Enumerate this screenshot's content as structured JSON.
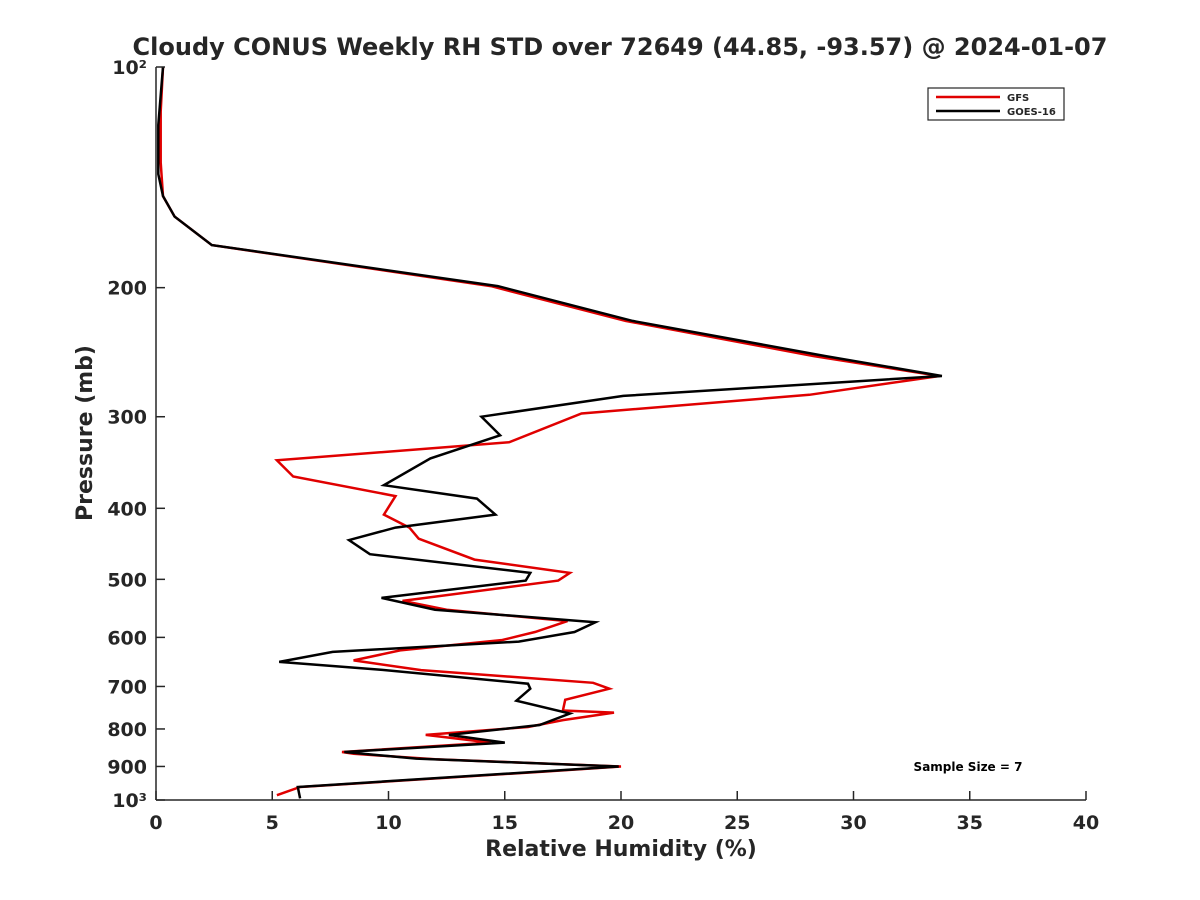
{
  "chart_data": {
    "type": "line",
    "title": "Cloudy CONUS Weekly RH STD over 72649 (44.85, -93.57) @ 2024-01-07",
    "xlabel": "Relative Humidity (%)",
    "ylabel": "Pressure (mb)",
    "xlim": [
      0,
      40
    ],
    "ylim": [
      100,
      1000
    ],
    "y_scale": "log",
    "y_reversed": true,
    "grid": false,
    "legend_position": "top-right",
    "x_ticks": [
      0,
      5,
      10,
      15,
      20,
      25,
      30,
      35,
      40
    ],
    "x_tick_labels": [
      "0",
      "5",
      "10",
      "15",
      "20",
      "25",
      "30",
      "35",
      "40"
    ],
    "y_ticks": [
      100,
      200,
      300,
      400,
      500,
      600,
      700,
      800,
      900,
      1000
    ],
    "y_tick_labels": [
      "10²",
      "200",
      "300",
      "400",
      "500",
      "600",
      "700",
      "800",
      "900",
      "10³"
    ],
    "annotation": "Sample Size = 7",
    "series": [
      {
        "name": "GFS",
        "color": "#e00000",
        "points": [
          [
            0.3,
            100
          ],
          [
            0.2,
            115
          ],
          [
            0.2,
            135
          ],
          [
            0.3,
            150
          ],
          [
            0.8,
            160
          ],
          [
            2.4,
            175
          ],
          [
            14.4,
            199
          ],
          [
            20.2,
            222
          ],
          [
            28.3,
            248
          ],
          [
            33.7,
            264
          ],
          [
            28.1,
            280
          ],
          [
            18.3,
            297
          ],
          [
            15.2,
            325
          ],
          [
            5.2,
            344
          ],
          [
            5.9,
            362
          ],
          [
            10.3,
            385
          ],
          [
            9.8,
            408
          ],
          [
            10.9,
            425
          ],
          [
            11.3,
            440
          ],
          [
            13.7,
            470
          ],
          [
            17.8,
            490
          ],
          [
            17.3,
            502
          ],
          [
            10.6,
            535
          ],
          [
            12.5,
            550
          ],
          [
            17.7,
            570
          ],
          [
            16.3,
            590
          ],
          [
            14.9,
            605
          ],
          [
            10.5,
            625
          ],
          [
            8.5,
            645
          ],
          [
            11.4,
            665
          ],
          [
            18.8,
            692
          ],
          [
            19.5,
            705
          ],
          [
            17.6,
            730
          ],
          [
            17.5,
            755
          ],
          [
            19.7,
            760
          ],
          [
            17.5,
            778
          ],
          [
            16.0,
            795
          ],
          [
            11.6,
            815
          ],
          [
            14.4,
            835
          ],
          [
            8.0,
            860
          ],
          [
            8.5,
            865
          ],
          [
            12.0,
            880
          ],
          [
            20.0,
            900
          ],
          [
            16.6,
            915
          ],
          [
            6.2,
            960
          ],
          [
            5.2,
            985
          ]
        ]
      },
      {
        "name": "GOES-16",
        "color": "#000000",
        "points": [
          [
            0.3,
            100
          ],
          [
            0.1,
            120
          ],
          [
            0.1,
            140
          ],
          [
            0.3,
            150
          ],
          [
            0.8,
            160
          ],
          [
            2.4,
            175
          ],
          [
            14.7,
            199
          ],
          [
            20.5,
            222
          ],
          [
            28.8,
            248
          ],
          [
            33.8,
            264
          ],
          [
            20.1,
            281
          ],
          [
            14.0,
            300
          ],
          [
            14.8,
            318
          ],
          [
            11.8,
            342
          ],
          [
            9.8,
            372
          ],
          [
            13.8,
            388
          ],
          [
            14.6,
            408
          ],
          [
            10.3,
            425
          ],
          [
            8.3,
            442
          ],
          [
            9.2,
            462
          ],
          [
            16.1,
            490
          ],
          [
            15.9,
            502
          ],
          [
            9.7,
            530
          ],
          [
            12.0,
            550
          ],
          [
            18.9,
            572
          ],
          [
            18.0,
            590
          ],
          [
            15.6,
            608
          ],
          [
            7.6,
            628
          ],
          [
            5.3,
            648
          ],
          [
            9.6,
            664
          ],
          [
            16.0,
            694
          ],
          [
            16.1,
            705
          ],
          [
            15.5,
            732
          ],
          [
            17.8,
            762
          ],
          [
            16.5,
            790
          ],
          [
            12.6,
            815
          ],
          [
            15.0,
            835
          ],
          [
            8.1,
            860
          ],
          [
            11.2,
            878
          ],
          [
            19.9,
            900
          ],
          [
            6.1,
            960
          ],
          [
            6.2,
            995
          ]
        ]
      }
    ]
  }
}
